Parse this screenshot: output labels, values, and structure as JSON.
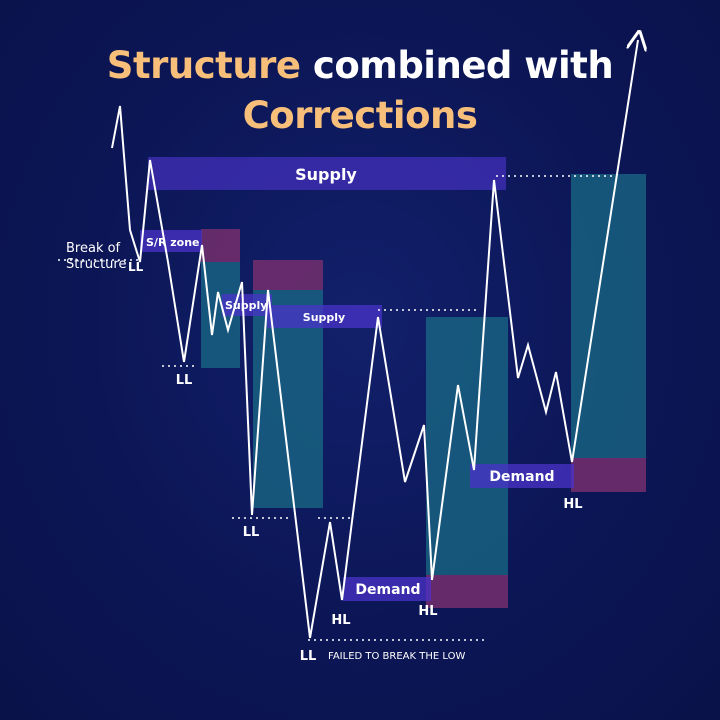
{
  "title": {
    "line1_accent": "Structure",
    "line1_rest": " combined with",
    "line2": "Corrections"
  },
  "labels": {
    "break_of": "Break of",
    "structure": "Structure",
    "sr_zone": "S/R zone",
    "supply_large": "Supply",
    "supply_small_1": "Supply",
    "supply_small_2": "Supply",
    "demand_1": "Demand",
    "demand_2": "Demand",
    "failed": "FAILED TO BREAK THE LOW",
    "ll_1": "LL",
    "ll_2": "LL",
    "ll_3": "LL",
    "ll_4": "LL",
    "hl_1": "HL",
    "hl_2": "HL",
    "hl_3": "HL"
  },
  "colors": {
    "background": "#0c1656",
    "title_accent": "#f7bf7a",
    "title_text": "#ffffff",
    "zone_label_fill": "#4a33c8",
    "bullish_box": "#1a6b86",
    "bearish_box": "#7a2f6e",
    "price_line": "#ffffff"
  }
}
